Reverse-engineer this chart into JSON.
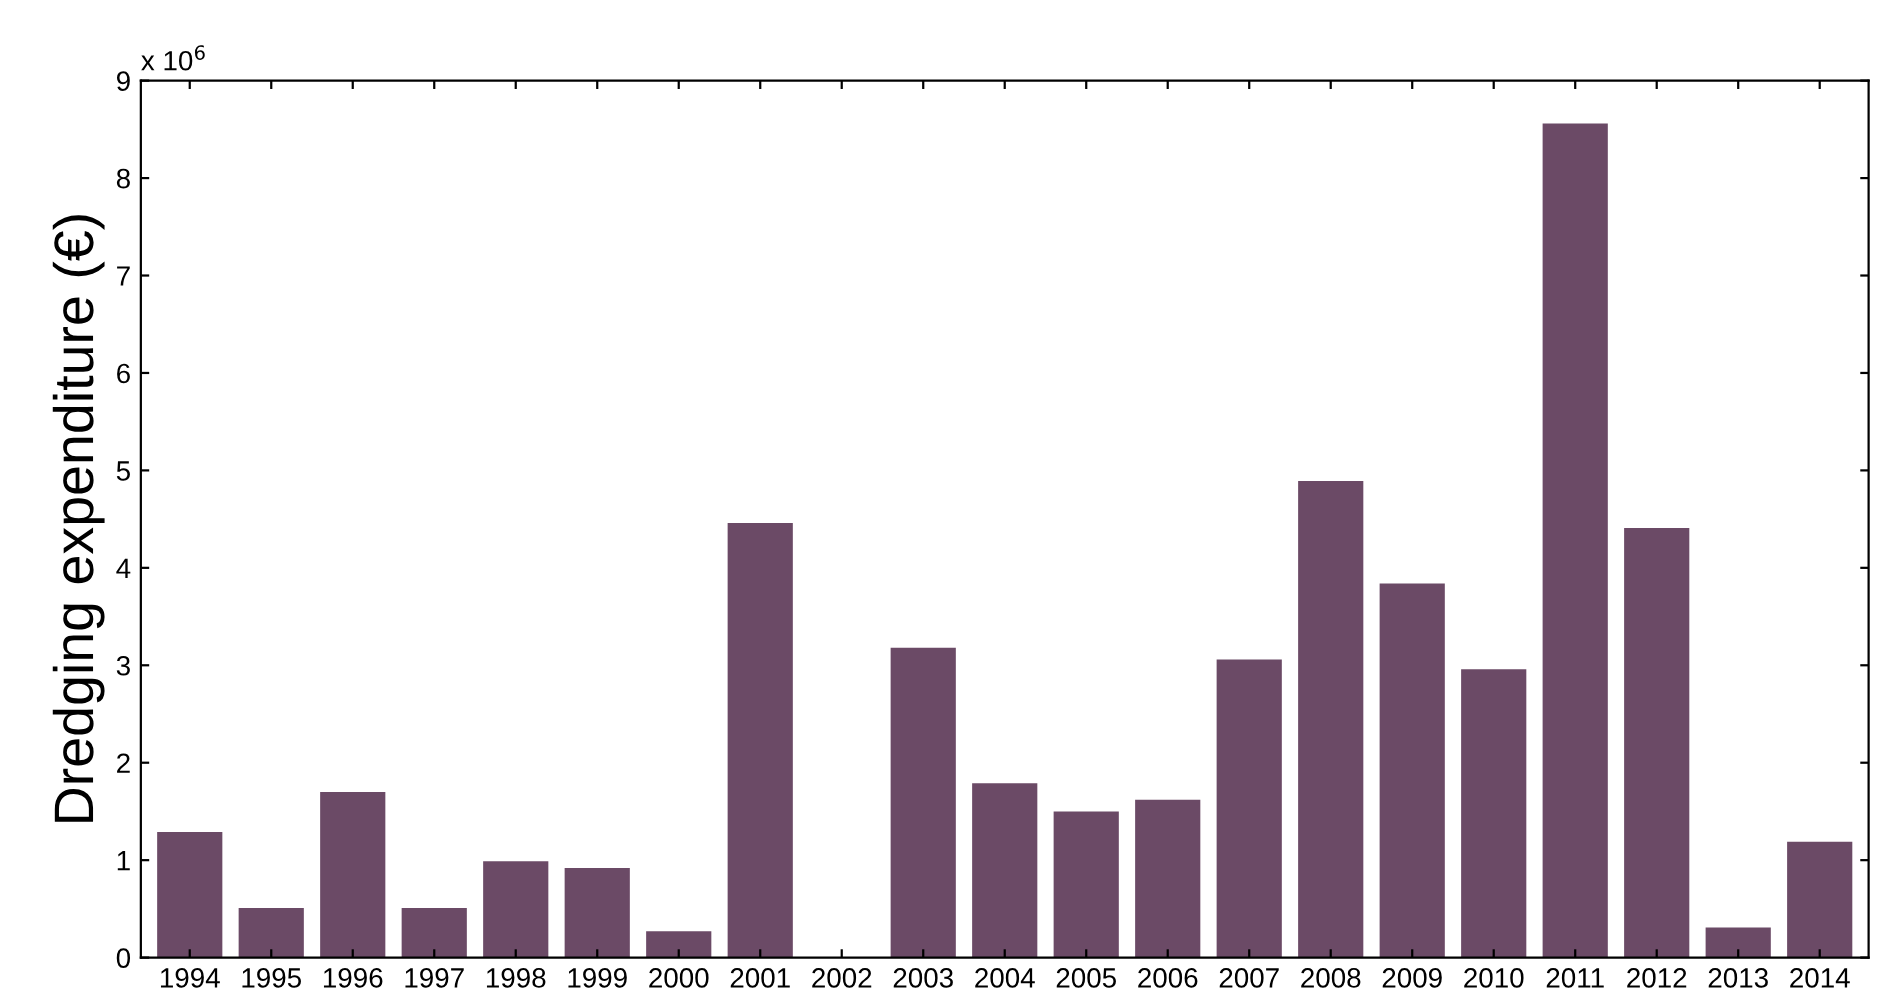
{
  "chart_data": {
    "type": "bar",
    "ylabel": "Dredging expenditure (€)",
    "annotations": [
      "x 10$^{6}$"
    ],
    "categories": [
      "1994",
      "1995",
      "1996",
      "1997",
      "1998",
      "1999",
      "2000",
      "2001",
      "2002",
      "2003",
      "2004",
      "2005",
      "2006",
      "2007",
      "2008",
      "2009",
      "2010",
      "2011",
      "2012",
      "2013",
      "2014"
    ],
    "values": [
      1.29,
      0.51,
      1.7,
      0.51,
      0.99,
      0.92,
      0.27,
      4.46,
      0,
      3.18,
      1.79,
      1.5,
      1.62,
      3.06,
      4.89,
      3.84,
      2.96,
      8.56,
      4.41,
      0.31,
      1.19
    ],
    "color": "#6b4a66",
    "ylim": [
      0,
      9
    ],
    "yticks": [
      0,
      1,
      2,
      3,
      4,
      5,
      6,
      7,
      8,
      9
    ],
    "grid": false,
    "legend": false
  }
}
